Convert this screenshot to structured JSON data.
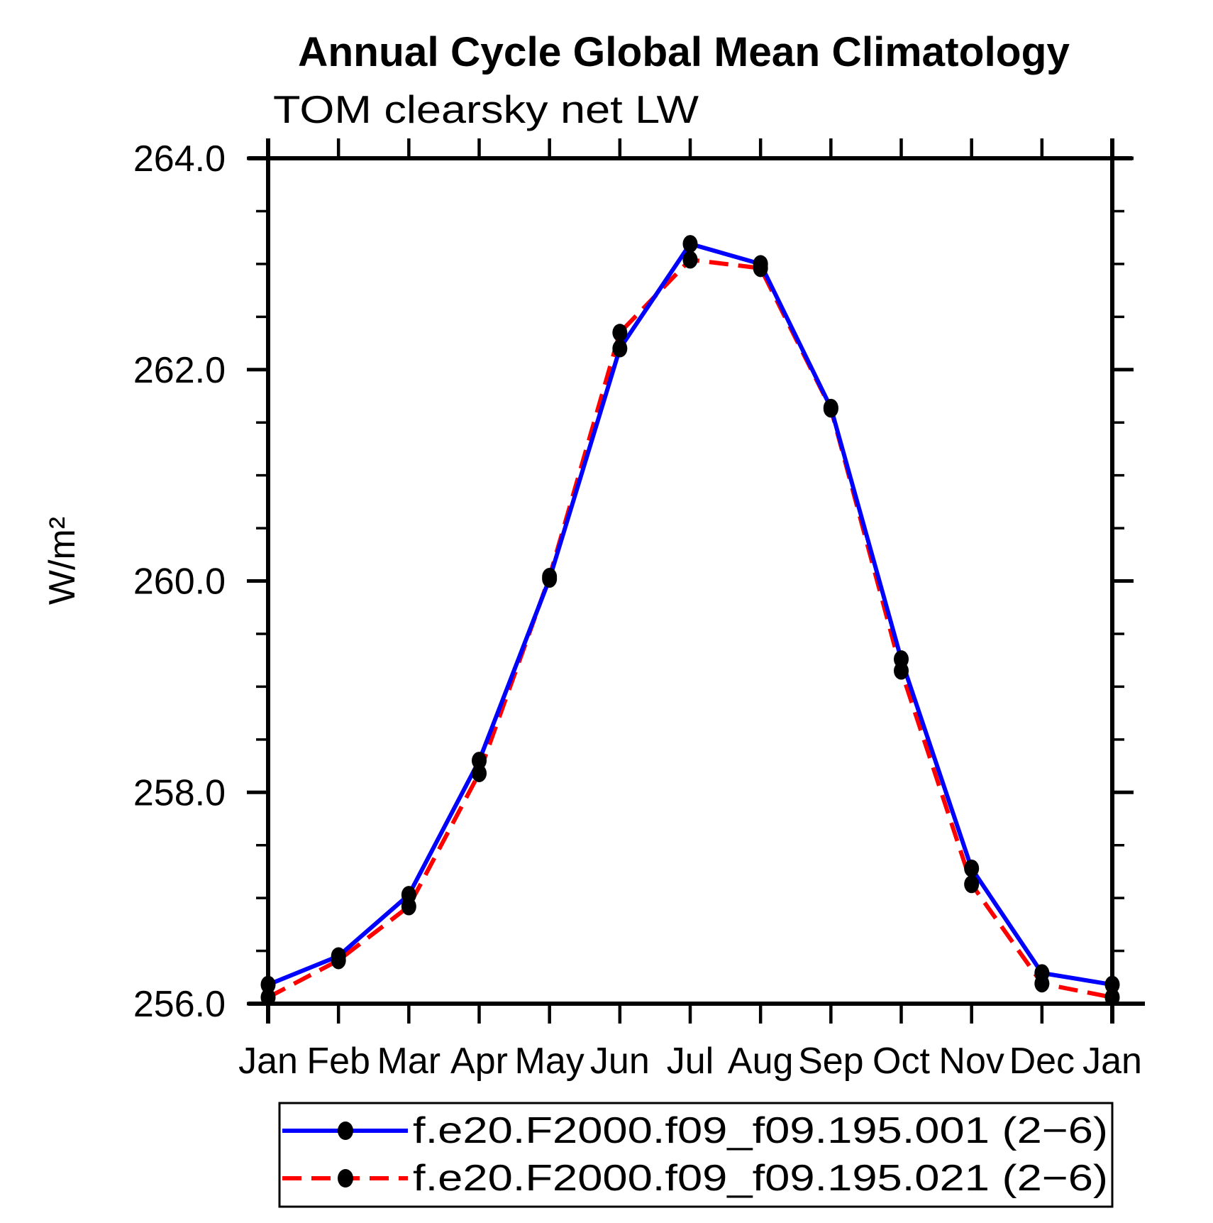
{
  "chart_data": {
    "type": "line",
    "title": "Annual Cycle Global Mean Climatology",
    "subtitle": "TOM clearsky net LW",
    "ylabel": "W/m²",
    "xlabel": "",
    "categories": [
      "Jan",
      "Feb",
      "Mar",
      "Apr",
      "May",
      "Jun",
      "Jul",
      "Aug",
      "Sep",
      "Oct",
      "Nov",
      "Dec",
      "Jan"
    ],
    "ylim": [
      256.0,
      264.0
    ],
    "y_major_tick_values": [
      256.0,
      258.0,
      260.0,
      262.0,
      264.0
    ],
    "y_major_tick_labels": [
      "256.0",
      "258.0",
      "260.0",
      "262.0",
      "264.0"
    ],
    "y_minor_tick_step": 0.5,
    "grid": "off",
    "legend_position": "bottom",
    "marker": {
      "shape": "filled-circle",
      "color": "#000000"
    },
    "series": [
      {
        "name": "f.e20.F2000.f09_f09.195.001 (2−6)",
        "color": "#0000ff",
        "line_style": "solid",
        "values": [
          256.18,
          256.45,
          257.03,
          258.3,
          260.02,
          262.2,
          263.19,
          263.0,
          261.64,
          259.26,
          257.28,
          256.29,
          256.18
        ]
      },
      {
        "name": "f.e20.F2000.f09_f09.195.021 (2−6)",
        "color": "#ff0000",
        "line_style": "dashed",
        "values": [
          256.06,
          256.41,
          256.92,
          258.18,
          260.04,
          262.35,
          263.04,
          262.96,
          261.63,
          259.15,
          257.13,
          256.19,
          256.06
        ]
      }
    ]
  }
}
